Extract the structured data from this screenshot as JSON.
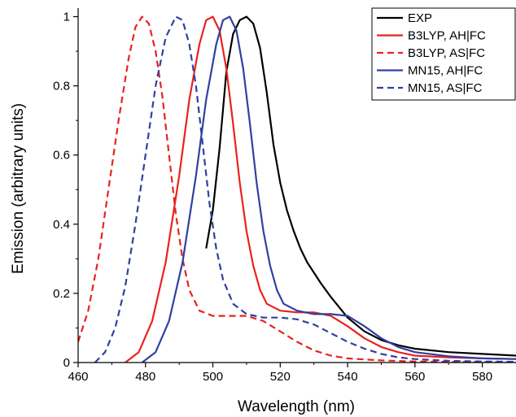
{
  "chart_data": {
    "type": "line",
    "xlabel": "Wavelength (nm)",
    "ylabel": "Emission (arbitrary units)",
    "xlim": [
      460,
      590
    ],
    "ylim": [
      0,
      1.02
    ],
    "x_ticks": [
      460,
      480,
      500,
      520,
      540,
      560,
      580
    ],
    "y_ticks": [
      0,
      0.2,
      0.4,
      0.6,
      0.8,
      1
    ],
    "x_tick_labels": [
      "460",
      "480",
      "500",
      "520",
      "540",
      "560",
      "580"
    ],
    "y_tick_labels": [
      "0",
      "0.2",
      "0.4",
      "0.6",
      "0.8",
      "1"
    ],
    "grid": false,
    "legend_position": "top-right",
    "series": [
      {
        "name": "EXP",
        "color": "#000000",
        "dash": "solid",
        "points": [
          [
            498,
            0.33
          ],
          [
            500,
            0.44
          ],
          [
            502,
            0.62
          ],
          [
            504,
            0.84
          ],
          [
            506,
            0.95
          ],
          [
            508,
            0.99
          ],
          [
            510,
            1.0
          ],
          [
            512,
            0.98
          ],
          [
            514,
            0.91
          ],
          [
            516,
            0.78
          ],
          [
            518,
            0.63
          ],
          [
            520,
            0.52
          ],
          [
            522,
            0.44
          ],
          [
            524,
            0.38
          ],
          [
            526,
            0.33
          ],
          [
            528,
            0.29
          ],
          [
            530,
            0.26
          ],
          [
            532,
            0.23
          ],
          [
            535,
            0.19
          ],
          [
            540,
            0.13
          ],
          [
            545,
            0.09
          ],
          [
            550,
            0.065
          ],
          [
            555,
            0.05
          ],
          [
            560,
            0.04
          ],
          [
            570,
            0.03
          ],
          [
            580,
            0.025
          ],
          [
            590,
            0.02
          ]
        ]
      },
      {
        "name": "B3LYP, AH|FC",
        "color": "#e8231e",
        "dash": "solid",
        "points": [
          [
            474,
            0.0
          ],
          [
            478,
            0.03
          ],
          [
            482,
            0.12
          ],
          [
            486,
            0.29
          ],
          [
            490,
            0.54
          ],
          [
            493,
            0.76
          ],
          [
            496,
            0.92
          ],
          [
            498,
            0.99
          ],
          [
            500,
            1.0
          ],
          [
            502,
            0.96
          ],
          [
            504,
            0.85
          ],
          [
            506,
            0.69
          ],
          [
            508,
            0.52
          ],
          [
            510,
            0.38
          ],
          [
            512,
            0.28
          ],
          [
            514,
            0.21
          ],
          [
            516,
            0.17
          ],
          [
            520,
            0.15
          ],
          [
            525,
            0.145
          ],
          [
            530,
            0.145
          ],
          [
            535,
            0.135
          ],
          [
            540,
            0.105
          ],
          [
            545,
            0.07
          ],
          [
            550,
            0.045
          ],
          [
            555,
            0.03
          ],
          [
            560,
            0.02
          ],
          [
            570,
            0.015
          ],
          [
            580,
            0.012
          ],
          [
            590,
            0.01
          ]
        ]
      },
      {
        "name": "B3LYP, AS|FC",
        "color": "#e8231e",
        "dash": "dashed",
        "points": [
          [
            460,
            0.06
          ],
          [
            463,
            0.15
          ],
          [
            466,
            0.3
          ],
          [
            469,
            0.5
          ],
          [
            472,
            0.7
          ],
          [
            475,
            0.88
          ],
          [
            477,
            0.97
          ],
          [
            479,
            1.0
          ],
          [
            481,
            0.98
          ],
          [
            483,
            0.9
          ],
          [
            485,
            0.77
          ],
          [
            487,
            0.6
          ],
          [
            489,
            0.43
          ],
          [
            491,
            0.3
          ],
          [
            493,
            0.21
          ],
          [
            496,
            0.15
          ],
          [
            500,
            0.135
          ],
          [
            505,
            0.135
          ],
          [
            510,
            0.135
          ],
          [
            515,
            0.12
          ],
          [
            520,
            0.09
          ],
          [
            525,
            0.06
          ],
          [
            530,
            0.035
          ],
          [
            535,
            0.02
          ],
          [
            540,
            0.012
          ],
          [
            550,
            0.006
          ],
          [
            560,
            0.003
          ],
          [
            580,
            0.001
          ],
          [
            590,
            0.0
          ]
        ]
      },
      {
        "name": "MN15, AH|FC",
        "color": "#3040a0",
        "dash": "solid",
        "points": [
          [
            479,
            0.0
          ],
          [
            483,
            0.03
          ],
          [
            487,
            0.12
          ],
          [
            491,
            0.29
          ],
          [
            495,
            0.54
          ],
          [
            498,
            0.76
          ],
          [
            501,
            0.92
          ],
          [
            503,
            0.99
          ],
          [
            505,
            1.0
          ],
          [
            507,
            0.96
          ],
          [
            509,
            0.85
          ],
          [
            511,
            0.69
          ],
          [
            513,
            0.52
          ],
          [
            515,
            0.38
          ],
          [
            517,
            0.28
          ],
          [
            519,
            0.21
          ],
          [
            521,
            0.17
          ],
          [
            525,
            0.15
          ],
          [
            530,
            0.14
          ],
          [
            535,
            0.14
          ],
          [
            540,
            0.135
          ],
          [
            545,
            0.105
          ],
          [
            550,
            0.07
          ],
          [
            555,
            0.045
          ],
          [
            560,
            0.03
          ],
          [
            570,
            0.018
          ],
          [
            580,
            0.012
          ],
          [
            590,
            0.01
          ]
        ]
      },
      {
        "name": "MN15, AS|FC",
        "color": "#3040a0",
        "dash": "dashed",
        "points": [
          [
            465,
            0.0
          ],
          [
            468,
            0.03
          ],
          [
            471,
            0.1
          ],
          [
            474,
            0.22
          ],
          [
            477,
            0.4
          ],
          [
            480,
            0.6
          ],
          [
            483,
            0.8
          ],
          [
            486,
            0.94
          ],
          [
            489,
            1.0
          ],
          [
            491,
            0.99
          ],
          [
            493,
            0.92
          ],
          [
            495,
            0.8
          ],
          [
            497,
            0.63
          ],
          [
            499,
            0.46
          ],
          [
            501,
            0.33
          ],
          [
            503,
            0.24
          ],
          [
            506,
            0.17
          ],
          [
            510,
            0.14
          ],
          [
            515,
            0.13
          ],
          [
            520,
            0.13
          ],
          [
            525,
            0.125
          ],
          [
            530,
            0.11
          ],
          [
            535,
            0.085
          ],
          [
            540,
            0.06
          ],
          [
            545,
            0.04
          ],
          [
            550,
            0.025
          ],
          [
            555,
            0.015
          ],
          [
            560,
            0.01
          ],
          [
            570,
            0.005
          ],
          [
            580,
            0.003
          ],
          [
            590,
            0.002
          ]
        ]
      }
    ]
  }
}
